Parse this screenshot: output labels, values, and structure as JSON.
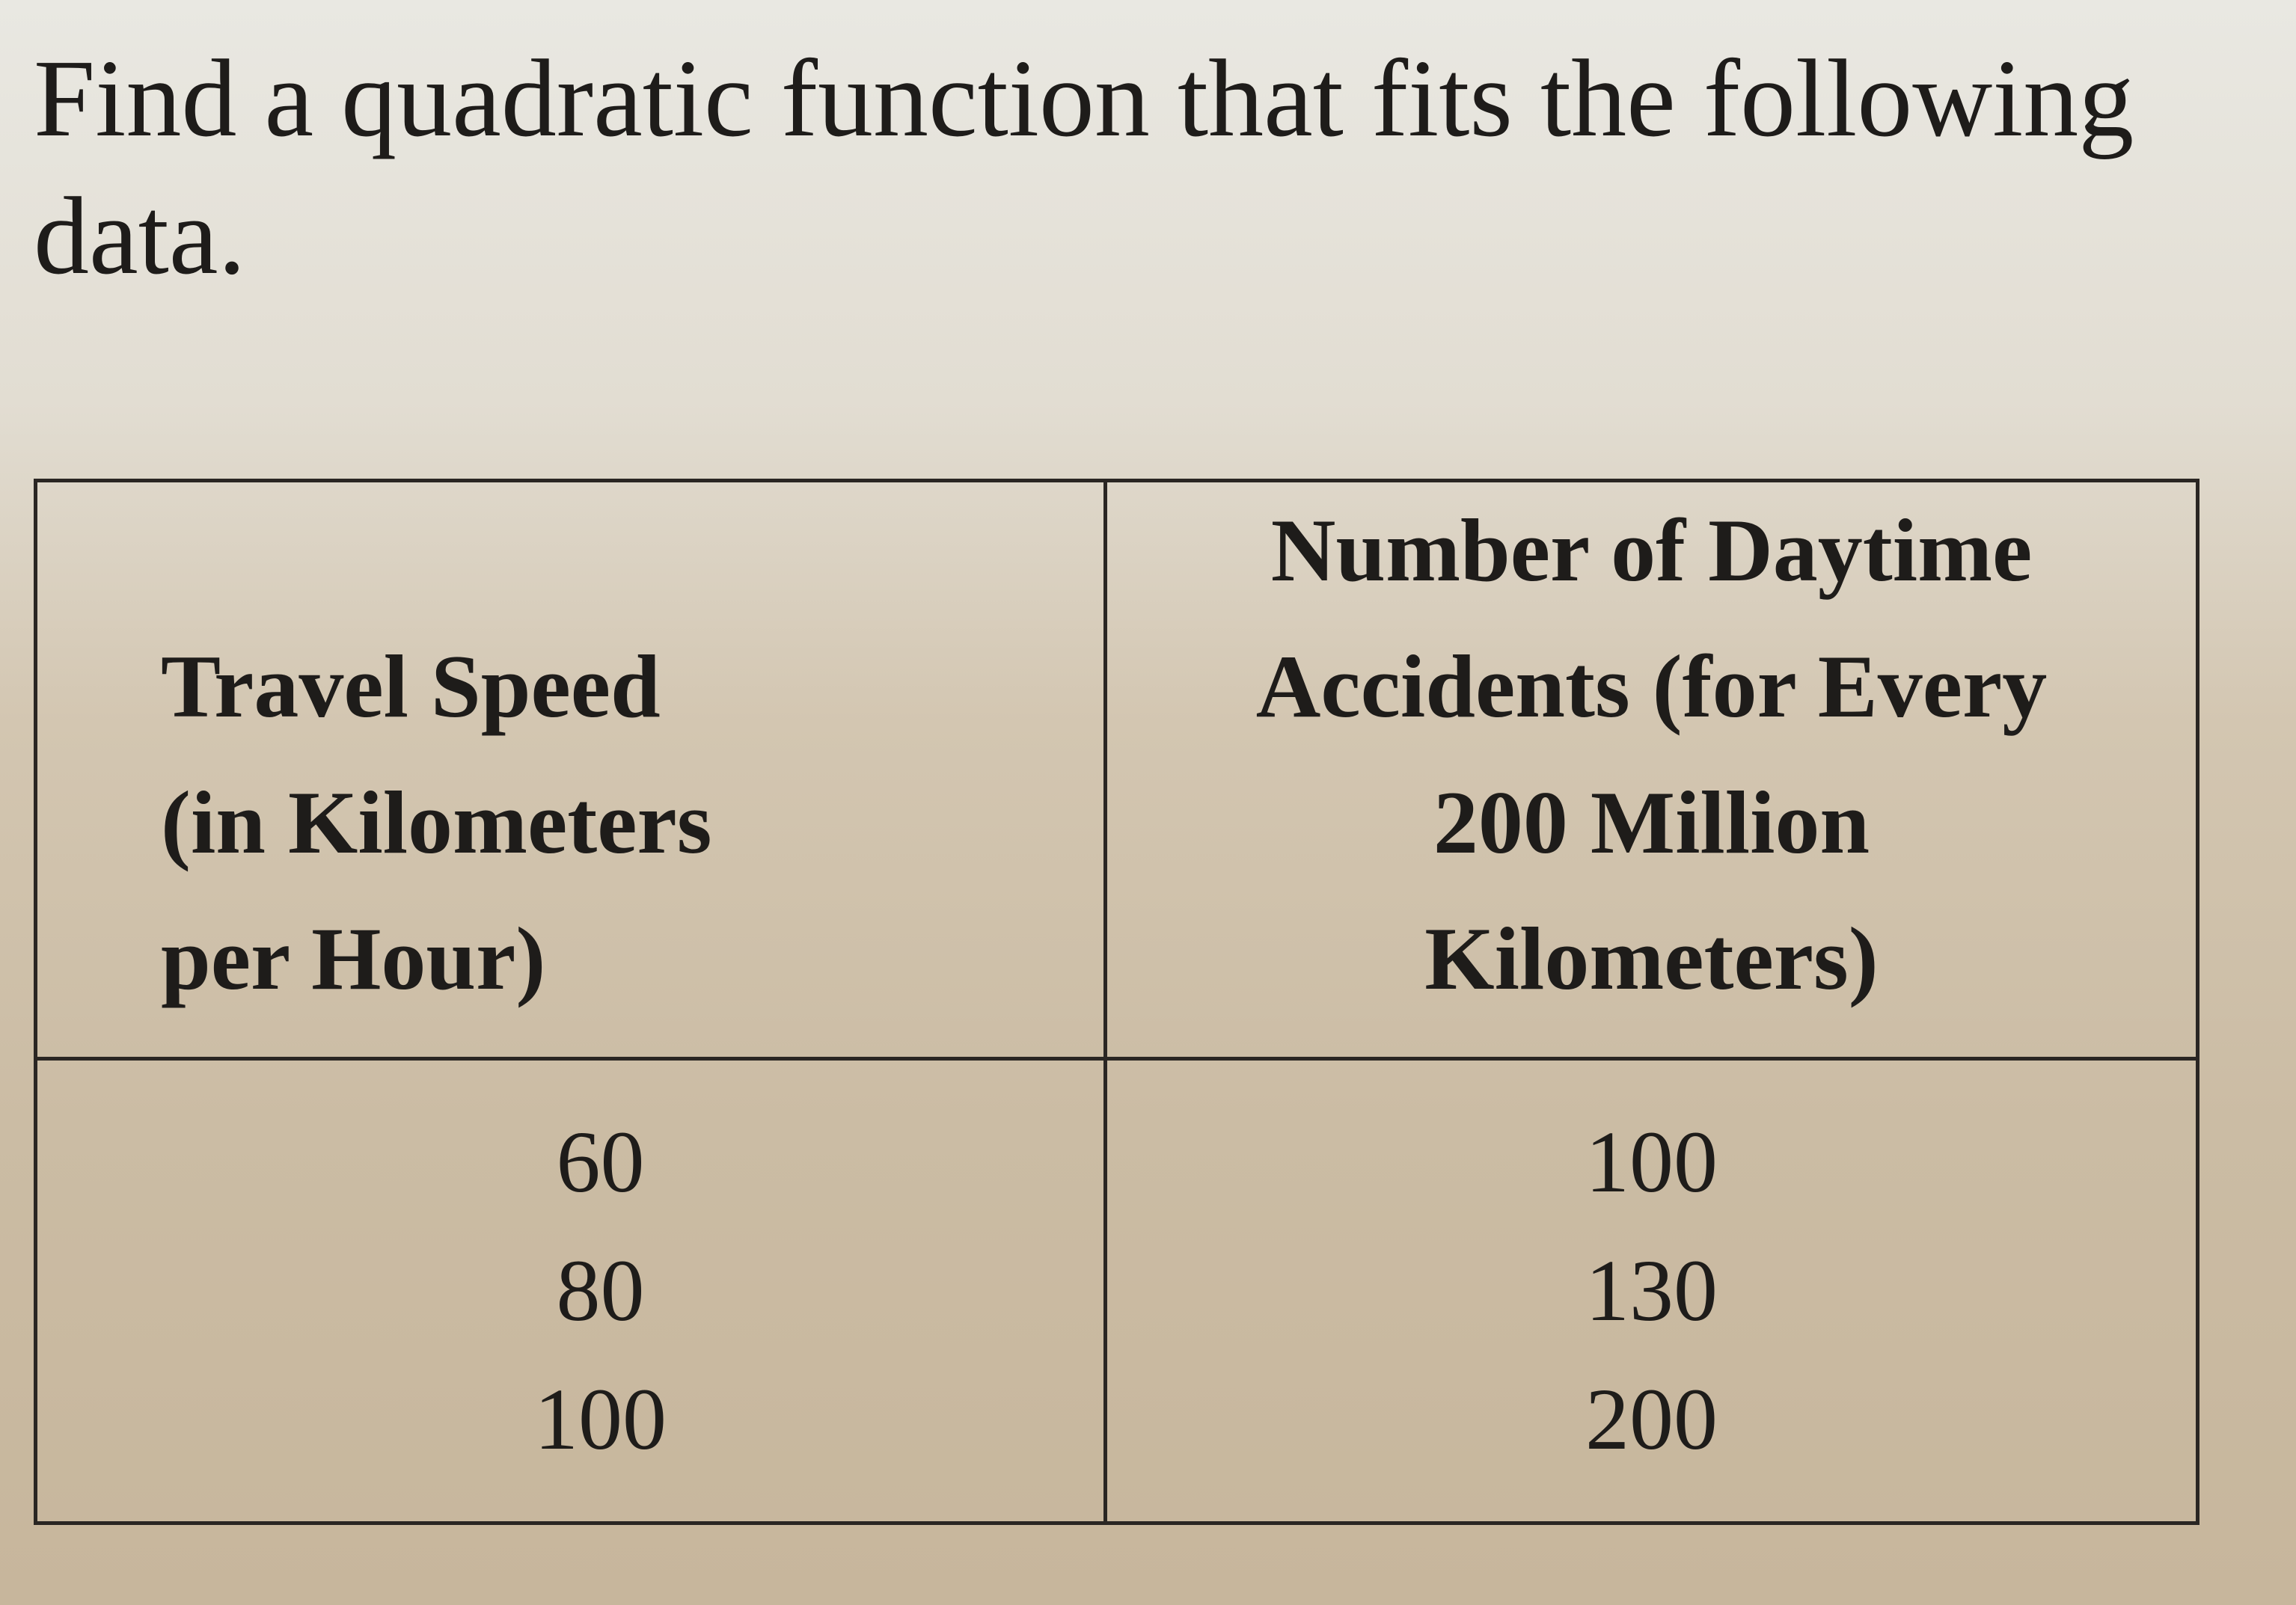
{
  "question": "Find a quadratic function that fits the following data.",
  "table": {
    "header": [
      [
        "Travel Speed",
        "(in Kilometers",
        "per Hour)"
      ],
      [
        "Number of Daytime",
        "Accidents (for Every",
        "200 Million",
        "Kilometers)"
      ]
    ],
    "rows": [
      [
        60,
        100
      ],
      [
        80,
        130
      ],
      [
        100,
        200
      ]
    ]
  }
}
